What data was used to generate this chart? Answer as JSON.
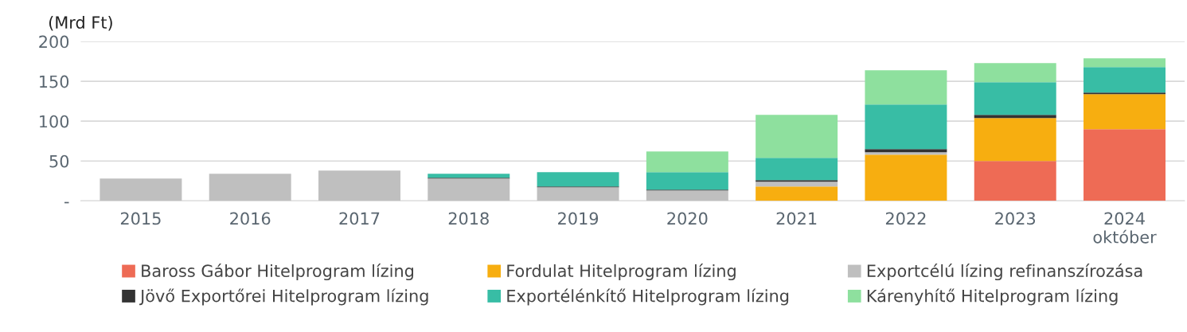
{
  "chart_data": {
    "type": "bar",
    "stacked": true,
    "ylabel": "(Mrd Ft)",
    "categories": [
      "2015",
      "2016",
      "2017",
      "2018",
      "2019",
      "2020",
      "2021",
      "2022",
      "2023",
      "2024\noktóber"
    ],
    "series": [
      {
        "name": "Baross Gábor Hitelprogram lízing",
        "color": "#ee6b55",
        "values": [
          0,
          0,
          0,
          0,
          0,
          0,
          0,
          0,
          50,
          90
        ]
      },
      {
        "name": "Fordulat Hitelprogram lízing",
        "color": "#f7ae10",
        "values": [
          0,
          0,
          0,
          0,
          0,
          0,
          18,
          58,
          54,
          44
        ]
      },
      {
        "name": "Exportcélú lízing refinanszírozása",
        "color": "#bfbfbf",
        "values": [
          28,
          34,
          38,
          28,
          17,
          13,
          6,
          3,
          0,
          0
        ]
      },
      {
        "name": "Jövő Exportőrei Hitelprogram lízing",
        "color": "#333333",
        "values": [
          0,
          0,
          0,
          1,
          1,
          1,
          2,
          4,
          4,
          2
        ]
      },
      {
        "name": "Exportélénkítő Hitelprogram lízing",
        "color": "#38bda5",
        "values": [
          0,
          0,
          0,
          5,
          18,
          22,
          28,
          56,
          41,
          32
        ]
      },
      {
        "name": "Kárenyhítő Hitelprogram lízing",
        "color": "#8ee09e",
        "values": [
          0,
          0,
          0,
          0,
          0,
          26,
          54,
          43,
          24,
          11
        ]
      }
    ],
    "ylim": [
      0,
      200
    ],
    "yticks": [
      {
        "value": 0,
        "label": "-"
      },
      50,
      100,
      150,
      200
    ],
    "grid": "y",
    "legend": "bottom"
  }
}
